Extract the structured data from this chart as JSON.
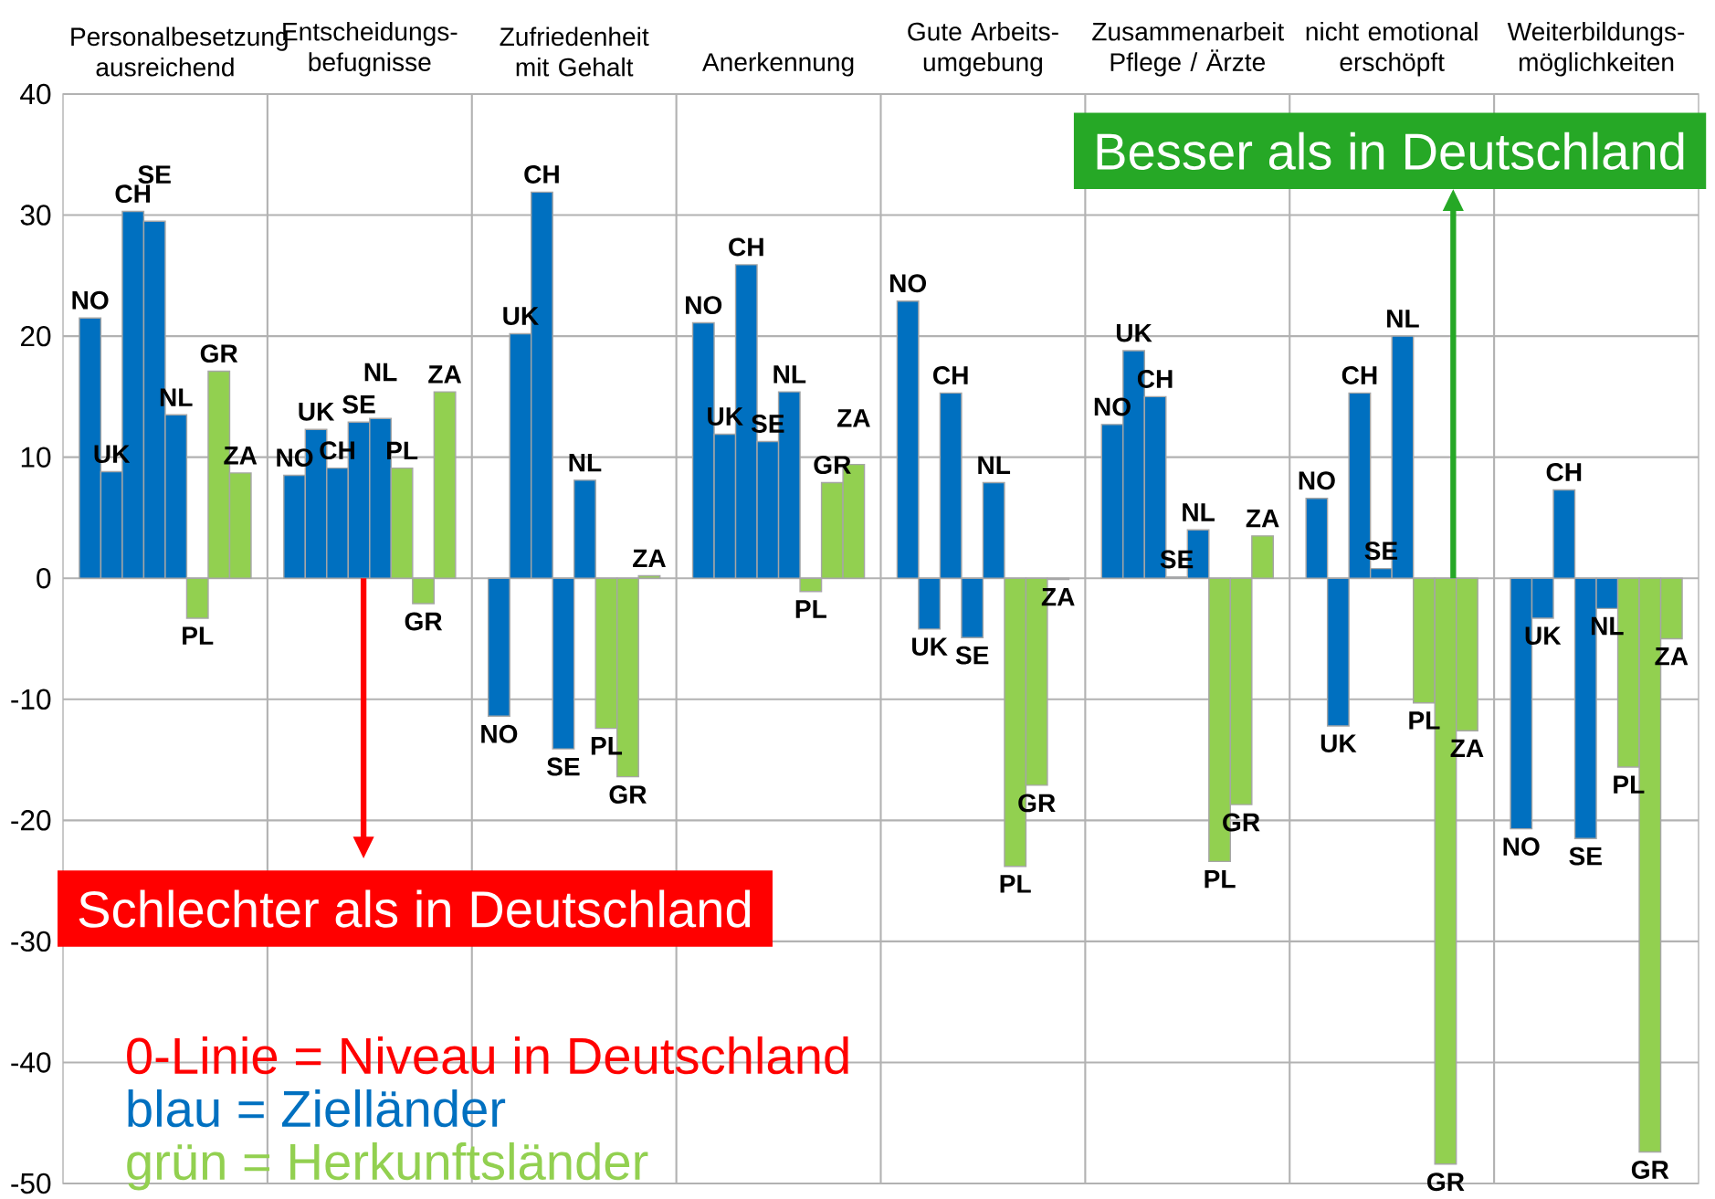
{
  "chart_data": {
    "type": "bar",
    "categories": [
      "Personalbesetzung ausreichend",
      "Entscheidungs- befugnisse",
      "Zufriedenheit mit Gehalt",
      "Anerkennung",
      "Gute Arbeits- umgebung",
      "Zusammenarbeit Pflege / Ärzte",
      "nicht emotional erschöpft",
      "Weiterbildungs- möglichkeiten"
    ],
    "series": [
      {
        "name": "NO",
        "color": "#0070c0",
        "values": [
          21.5,
          8.5,
          -11.4,
          21.1,
          22.9,
          12.7,
          6.6,
          -20.7
        ]
      },
      {
        "name": "UK",
        "color": "#0070c0",
        "values": [
          8.8,
          12.3,
          20.2,
          11.9,
          -4.2,
          18.8,
          -12.2,
          -3.3
        ]
      },
      {
        "name": "CH",
        "color": "#0070c0",
        "values": [
          30.3,
          9.1,
          31.9,
          25.9,
          15.3,
          15.0,
          15.3,
          7.3
        ]
      },
      {
        "name": "SE",
        "color": "#0070c0",
        "values": [
          29.5,
          12.9,
          -14.1,
          11.3,
          -4.9,
          0.1,
          0.8,
          -21.5
        ]
      },
      {
        "name": "NL",
        "color": "#0070c0",
        "values": [
          13.5,
          13.2,
          8.1,
          15.4,
          7.9,
          4.0,
          20.0,
          -2.5
        ]
      },
      {
        "name": "PL",
        "color": "#92d050",
        "values": [
          -3.3,
          9.1,
          -12.4,
          -1.1,
          -23.8,
          -23.4,
          -10.3,
          -15.6
        ]
      },
      {
        "name": "GR",
        "color": "#92d050",
        "values": [
          17.1,
          -2.1,
          -16.4,
          7.9,
          -17.1,
          -18.7,
          -48.4,
          -47.4
        ]
      },
      {
        "name": "ZA",
        "color": "#92d050",
        "values": [
          8.7,
          15.4,
          0.2,
          9.4,
          -0.1,
          3.5,
          -12.6,
          -5.0
        ]
      }
    ],
    "ylim": [
      -50,
      40
    ],
    "yticks": [
      -50,
      -40,
      -30,
      -20,
      -10,
      0,
      10,
      20,
      30,
      40
    ],
    "grid": true,
    "annotations": [
      "Besser als in Deutschland",
      "Schlechter als in Deutschland",
      "0-Linie = Niveau in Deutschland",
      "blau = Zielländer",
      "grün = Herkunftsländer"
    ]
  }
}
